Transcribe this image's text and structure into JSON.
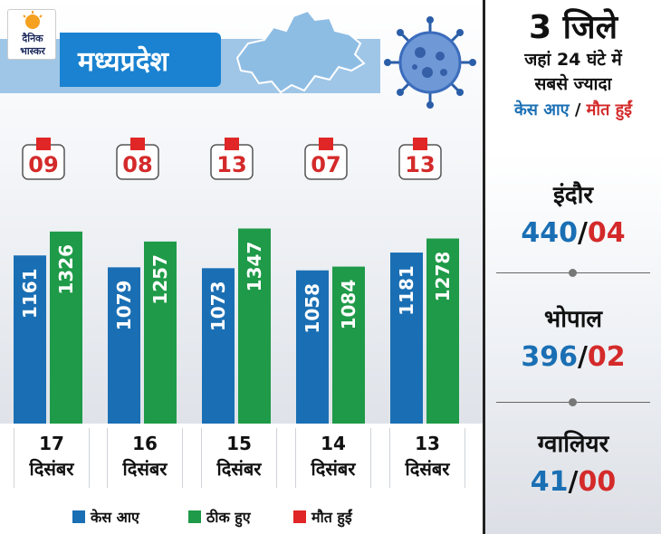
{
  "header": {
    "logo_line1": "दैनिक",
    "logo_line2": "भास्कर",
    "title": "मध्यप्रदेश"
  },
  "colors": {
    "cases": "#1a6fb4",
    "recovered": "#1f9a48",
    "deaths": "#e02626",
    "title_blue": "#1a82d0"
  },
  "legend": {
    "cases": "केस आए",
    "recovered": "ठीक हुए",
    "deaths": "मौत हुईं"
  },
  "chart_data": {
    "type": "bar",
    "categories": [
      {
        "day": "17",
        "month": "दिसंबर"
      },
      {
        "day": "16",
        "month": "दिसंबर"
      },
      {
        "day": "15",
        "month": "दिसंबर"
      },
      {
        "day": "14",
        "month": "दिसंबर"
      },
      {
        "day": "13",
        "month": "दिसंबर"
      }
    ],
    "series": [
      {
        "name": "केस आए",
        "values": [
          1161,
          1079,
          1073,
          1058,
          1181
        ]
      },
      {
        "name": "ठीक हुए",
        "values": [
          1326,
          1257,
          1347,
          1084,
          1278
        ]
      }
    ],
    "deaths": [
      "09",
      "08",
      "13",
      "07",
      "13"
    ],
    "ylim": [
      0,
      1400
    ]
  },
  "right_panel": {
    "headline": "3 जिले",
    "line1": "जहां 24 घंटे में",
    "line2": "सबसे ज्यादा",
    "legend_cases": "केस आए",
    "legend_sep": " / ",
    "legend_deaths": "मौत हुईं",
    "districts": [
      {
        "name": "इंदौर",
        "cases": "440",
        "deaths": "04"
      },
      {
        "name": "भोपाल",
        "cases": "396",
        "deaths": "02"
      },
      {
        "name": "ग्वालियर",
        "cases": "41",
        "deaths": "00"
      }
    ]
  }
}
